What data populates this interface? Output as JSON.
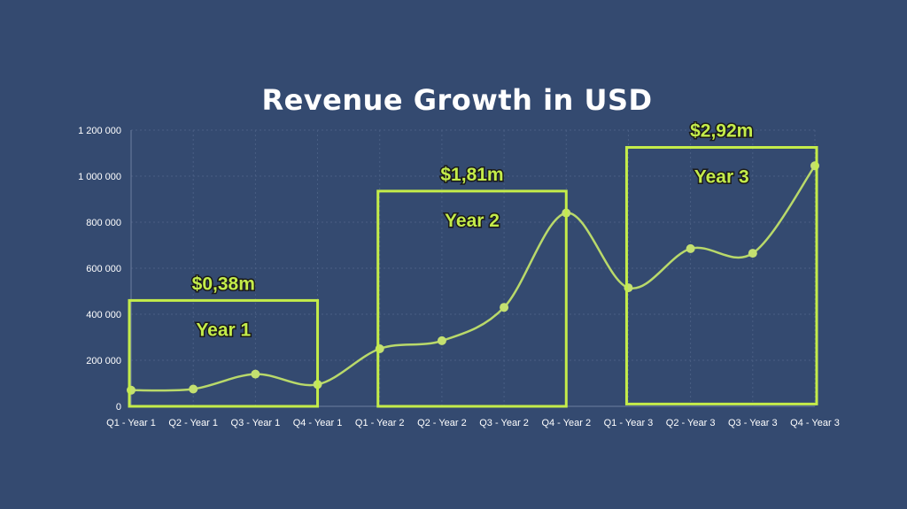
{
  "chart_data": {
    "type": "line",
    "title": "Revenue Growth in USD",
    "xlabel": "",
    "ylabel": "",
    "ylim": [
      0,
      1200000
    ],
    "y_ticks": [
      "0",
      "200 000",
      "400 000",
      "600 000",
      "800 000",
      "1 000 000",
      "1 200 000"
    ],
    "categories": [
      "Q1 - Year 1",
      "Q2 - Year 1",
      "Q3 - Year 1",
      "Q4 - Year 1",
      "Q1 - Year 2",
      "Q2 - Year 2",
      "Q3 - Year 2",
      "Q4 - Year 2",
      "Q1 - Year 3",
      "Q2 - Year 3",
      "Q3 - Year 3",
      "Q4 - Year 3"
    ],
    "series": [
      {
        "values": [
          70000,
          75000,
          140000,
          95000,
          250000,
          285000,
          430000,
          840000,
          515000,
          685000,
          665000,
          1045000
        ]
      }
    ],
    "grid": true,
    "smooth": true,
    "line_color": "#b9d96a",
    "highlight_color": "#c4ec4a",
    "annotations": [
      {
        "category_range": [
          "Q1 - Year 1",
          "Q4 - Year 1"
        ],
        "value_top": 460000,
        "value_bottom": 0,
        "label": "Year 1",
        "total": "$0,38m"
      },
      {
        "category_range": [
          "Q1 - Year 2",
          "Q4 - Year 2"
        ],
        "value_top": 935000,
        "value_bottom": 0,
        "label": "Year 2",
        "total": "$1,81m"
      },
      {
        "category_range": [
          "Q1 - Year 3",
          "Q4 - Year 3"
        ],
        "value_top": 1125000,
        "value_bottom": 10000,
        "label": "Year 3",
        "total": "$2,92m"
      }
    ]
  },
  "colors": {
    "background": "#344a70",
    "text": "#ffffff"
  }
}
